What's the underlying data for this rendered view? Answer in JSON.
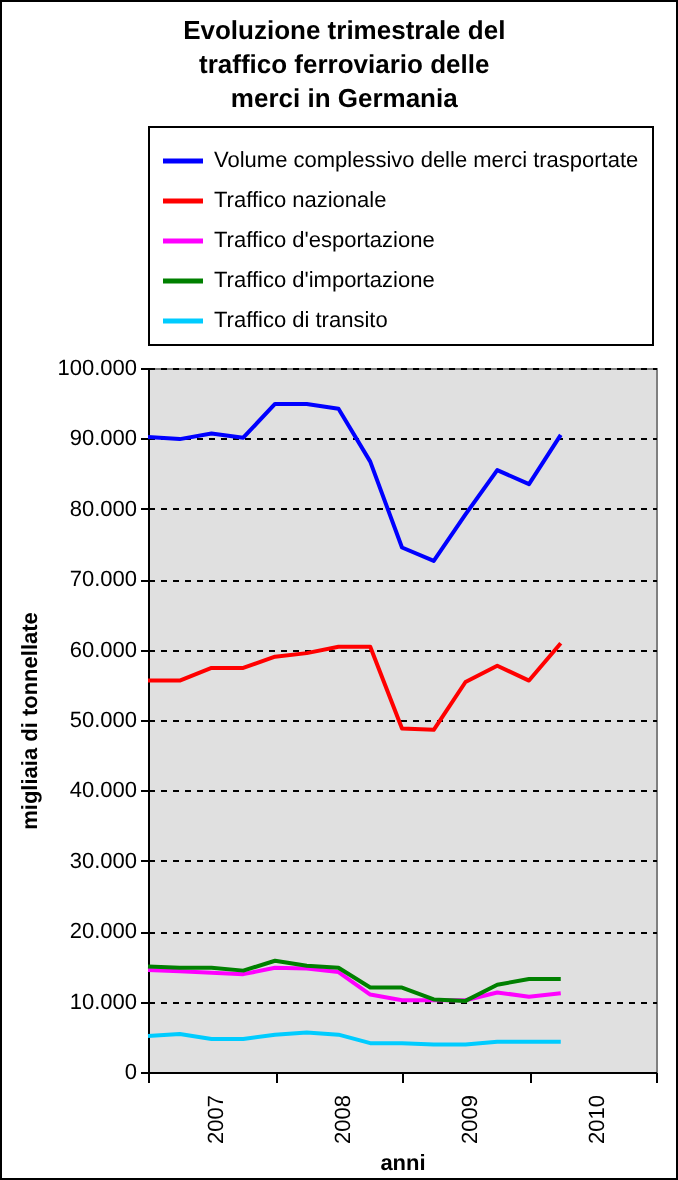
{
  "chart_data": {
    "type": "line",
    "title": "Evoluzione trimestrale del traffico ferroviario delle merci in Germania",
    "xlabel": "anni",
    "ylabel": "migliaia di tonnellate",
    "x": [
      2007,
      2007.25,
      2007.5,
      2007.75,
      2008,
      2008.25,
      2008.5,
      2008.75,
      2009,
      2009.25,
      2009.5,
      2009.75,
      2010,
      2010.25
    ],
    "xlim": [
      2007,
      2011
    ],
    "xticks": [
      {
        "value": 2007,
        "label": null
      },
      {
        "value": 2007.5,
        "label": "2007"
      },
      {
        "value": 2008,
        "label": null
      },
      {
        "value": 2008.5,
        "label": "2008"
      },
      {
        "value": 2009,
        "label": null
      },
      {
        "value": 2009.5,
        "label": "2009"
      },
      {
        "value": 2010,
        "label": null
      },
      {
        "value": 2010.5,
        "label": "2010"
      },
      {
        "value": 2011,
        "label": null
      }
    ],
    "ylim": [
      0,
      100000
    ],
    "yticks": [
      {
        "value": 0,
        "label": "0"
      },
      {
        "value": 10000,
        "label": "10.000"
      },
      {
        "value": 20000,
        "label": "20.000"
      },
      {
        "value": 30000,
        "label": "30.000"
      },
      {
        "value": 40000,
        "label": "40.000"
      },
      {
        "value": 50000,
        "label": "50.000"
      },
      {
        "value": 60000,
        "label": "60.000"
      },
      {
        "value": 70000,
        "label": "70.000"
      },
      {
        "value": 80000,
        "label": "80.000"
      },
      {
        "value": 90000,
        "label": "90.000"
      },
      {
        "value": 100000,
        "label": "100.000"
      }
    ],
    "grid": "y",
    "legend": "top",
    "marker": "none",
    "line_style": "solid",
    "series": [
      {
        "name": "Volume complessivo delle merci trasportate",
        "color": "#0000ff",
        "values": [
          90200,
          89900,
          90700,
          90100,
          94900,
          94900,
          94200,
          86700,
          74500,
          72600,
          79200,
          85500,
          83500,
          90500
        ]
      },
      {
        "name": "Traffico nazionale",
        "color": "#ff0000",
        "values": [
          55600,
          55600,
          57400,
          57400,
          59000,
          59500,
          60400,
          60400,
          48800,
          48600,
          55400,
          57700,
          55600,
          60900
        ]
      },
      {
        "name": "Traffico d'esportazione",
        "color": "#ff00ff",
        "values": [
          14500,
          14300,
          14100,
          13900,
          14800,
          14700,
          14200,
          11000,
          10200,
          10200,
          10200,
          11300,
          10700,
          11200
        ]
      },
      {
        "name": "Traffico d'importazione",
        "color": "#008000",
        "values": [
          15000,
          14800,
          14800,
          14400,
          15800,
          15100,
          14800,
          12000,
          12000,
          10300,
          10100,
          12400,
          13200,
          13200
        ]
      },
      {
        "name": "Traffico di transito",
        "color": "#00ccff",
        "values": [
          5100,
          5400,
          4700,
          4700,
          5300,
          5600,
          5300,
          4100,
          4100,
          3900,
          3900,
          4300,
          4300,
          4300
        ]
      }
    ]
  }
}
